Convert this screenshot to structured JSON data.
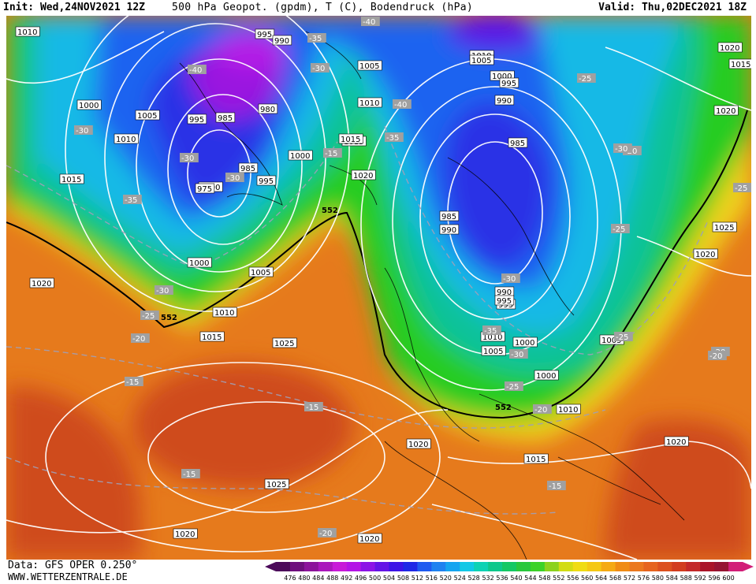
{
  "header": {
    "init": "Init: Wed,24NOV2021 12Z",
    "parameters": "500 hPa Geopot. (gpdm), T (C), Bodendruck (hPa)",
    "valid": "Valid: Thu,02DEC2021 18Z"
  },
  "footer": {
    "data_source": "Data: GFS OPER 0.250°",
    "website": "WWW.WETTERZENTRALE.DE"
  },
  "colors": {
    "background_orange": "#e67a1c",
    "outer_red": "#cf4c1c",
    "yellow": "#f0d21a",
    "green": "#25cc22",
    "teal": "#0ec29a",
    "cyan": "#12b9e6",
    "blue": "#1e64f0",
    "deep_blue": "#2a32e6",
    "purple": "#9914e0",
    "isobar": "#ffffff",
    "coastline": "#000000"
  },
  "colorbar": {
    "levels": [
      "476",
      "480",
      "484",
      "488",
      "492",
      "496",
      "500",
      "504",
      "508",
      "512",
      "516",
      "520",
      "524",
      "528",
      "532",
      "536",
      "540",
      "544",
      "548",
      "552",
      "556",
      "560",
      "564",
      "568",
      "572",
      "576",
      "580",
      "584",
      "588",
      "592",
      "596",
      "600"
    ],
    "colors": [
      "#4b0a5a",
      "#6e0f7d",
      "#8c139b",
      "#aa17bc",
      "#c81ad8",
      "#b414e6",
      "#8c14e6",
      "#6414e6",
      "#3c14e6",
      "#1e28e6",
      "#1e5af0",
      "#1e82f0",
      "#14a5f0",
      "#12c8e6",
      "#0ed2b4",
      "#0ec88c",
      "#14c864",
      "#28c83c",
      "#3cd228",
      "#8cd21e",
      "#d2dc14",
      "#f0dc14",
      "#f5c814",
      "#f5aa14",
      "#f08c14",
      "#eb781e",
      "#e6641e",
      "#dc501e",
      "#d23c1e",
      "#c32828",
      "#aa1428",
      "#961432",
      "#d21e78"
    ]
  },
  "pressure_labels": [
    {
      "t": "1010"
    },
    {
      "t": "1000"
    },
    {
      "t": "995"
    },
    {
      "t": "990"
    },
    {
      "t": "1005"
    },
    {
      "t": "1010"
    },
    {
      "t": "1015"
    },
    {
      "t": "1010"
    },
    {
      "t": "1005"
    },
    {
      "t": "1000"
    },
    {
      "t": "995"
    },
    {
      "t": "985"
    },
    {
      "t": "980"
    },
    {
      "t": "1000"
    },
    {
      "t": "985"
    },
    {
      "t": "975"
    },
    {
      "t": "995"
    },
    {
      "t": "1015"
    },
    {
      "t": "1020"
    },
    {
      "t": "1015"
    },
    {
      "t": "1010"
    },
    {
      "t": "1005"
    },
    {
      "t": "1000"
    },
    {
      "t": "995"
    },
    {
      "t": "990"
    },
    {
      "t": "985"
    },
    {
      "t": "985"
    },
    {
      "t": "990"
    },
    {
      "t": "995"
    },
    {
      "t": "1020"
    },
    {
      "t": "1015"
    },
    {
      "t": "1020"
    },
    {
      "t": "1025"
    },
    {
      "t": "1020"
    },
    {
      "t": "1000"
    },
    {
      "t": "1005"
    },
    {
      "t": "1020"
    },
    {
      "t": "1010"
    },
    {
      "t": "1015"
    },
    {
      "t": "1025"
    },
    {
      "t": "1010"
    },
    {
      "t": "1000"
    },
    {
      "t": "1005"
    },
    {
      "t": "1000"
    },
    {
      "t": "1010"
    },
    {
      "t": "1020"
    },
    {
      "t": "1015"
    },
    {
      "t": "1020"
    },
    {
      "t": "1025"
    },
    {
      "t": "1020"
    },
    {
      "t": "1020"
    },
    {
      "t": "1005"
    },
    {
      "t": "990"
    },
    {
      "t": "995"
    }
  ],
  "temperature_labels": [
    {
      "t": "-40"
    },
    {
      "t": "-35"
    },
    {
      "t": "-30"
    },
    {
      "t": "-40"
    },
    {
      "t": "-30"
    },
    {
      "t": "-30"
    },
    {
      "t": "-25"
    },
    {
      "t": "-20"
    },
    {
      "t": "-15"
    },
    {
      "t": "-40"
    },
    {
      "t": "-35"
    },
    {
      "t": "-30"
    },
    {
      "t": "-35"
    },
    {
      "t": "-30"
    },
    {
      "t": "-25"
    },
    {
      "t": "-30"
    },
    {
      "t": "-25"
    },
    {
      "t": "-25"
    },
    {
      "t": "-30"
    },
    {
      "t": "-25"
    },
    {
      "t": "-20"
    },
    {
      "t": "-15"
    },
    {
      "t": "-15"
    },
    {
      "t": "-15"
    },
    {
      "t": "-35"
    },
    {
      "t": "-30"
    },
    {
      "t": "-25"
    },
    {
      "t": "-20"
    },
    {
      "t": "-20"
    },
    {
      "t": "-20"
    },
    {
      "t": "-15"
    },
    {
      "t": "-20"
    }
  ],
  "geopotential_labels": [
    {
      "t": "552"
    },
    {
      "t": "552"
    },
    {
      "t": "552"
    }
  ]
}
